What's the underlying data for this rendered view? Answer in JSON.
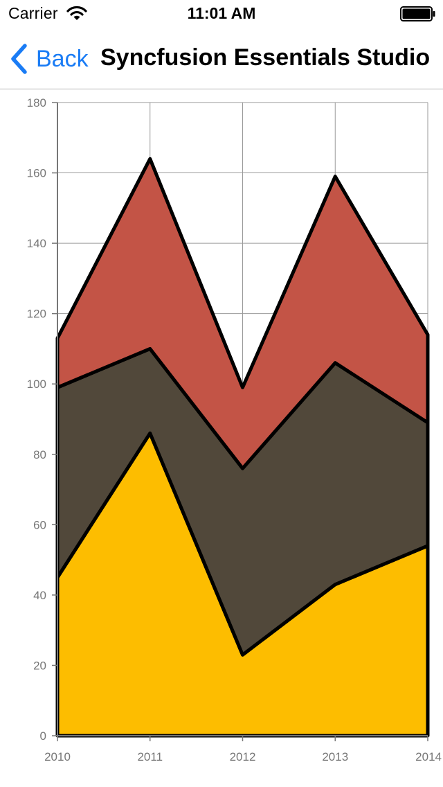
{
  "status_bar": {
    "carrier": "Carrier",
    "time": "11:01 AM",
    "icons": [
      "wifi-icon",
      "battery-icon"
    ]
  },
  "nav_bar": {
    "back_label": "Back",
    "back_icon": "chevron-left-icon",
    "title": "Syncfusion Essentials Studio",
    "accent_color": "#1a7cf5"
  },
  "chart_data": {
    "type": "area",
    "stacked": true,
    "title": "",
    "xlabel": "",
    "ylabel": "",
    "categories": [
      "2010",
      "2011",
      "2012",
      "2013",
      "2014"
    ],
    "ylim": [
      0,
      180
    ],
    "yticks": [
      0,
      20,
      40,
      60,
      80,
      100,
      120,
      140,
      160,
      180
    ],
    "grid": true,
    "legend": "none",
    "series": [
      {
        "values": [
          45,
          86,
          23,
          43,
          54
        ],
        "color": "#fdbd00"
      },
      {
        "values": [
          54,
          24,
          53,
          63,
          35
        ],
        "color": "#51483a"
      },
      {
        "values": [
          14,
          54,
          23,
          53,
          25
        ],
        "color": "#c35446"
      }
    ],
    "stroke_color": "#000000"
  }
}
